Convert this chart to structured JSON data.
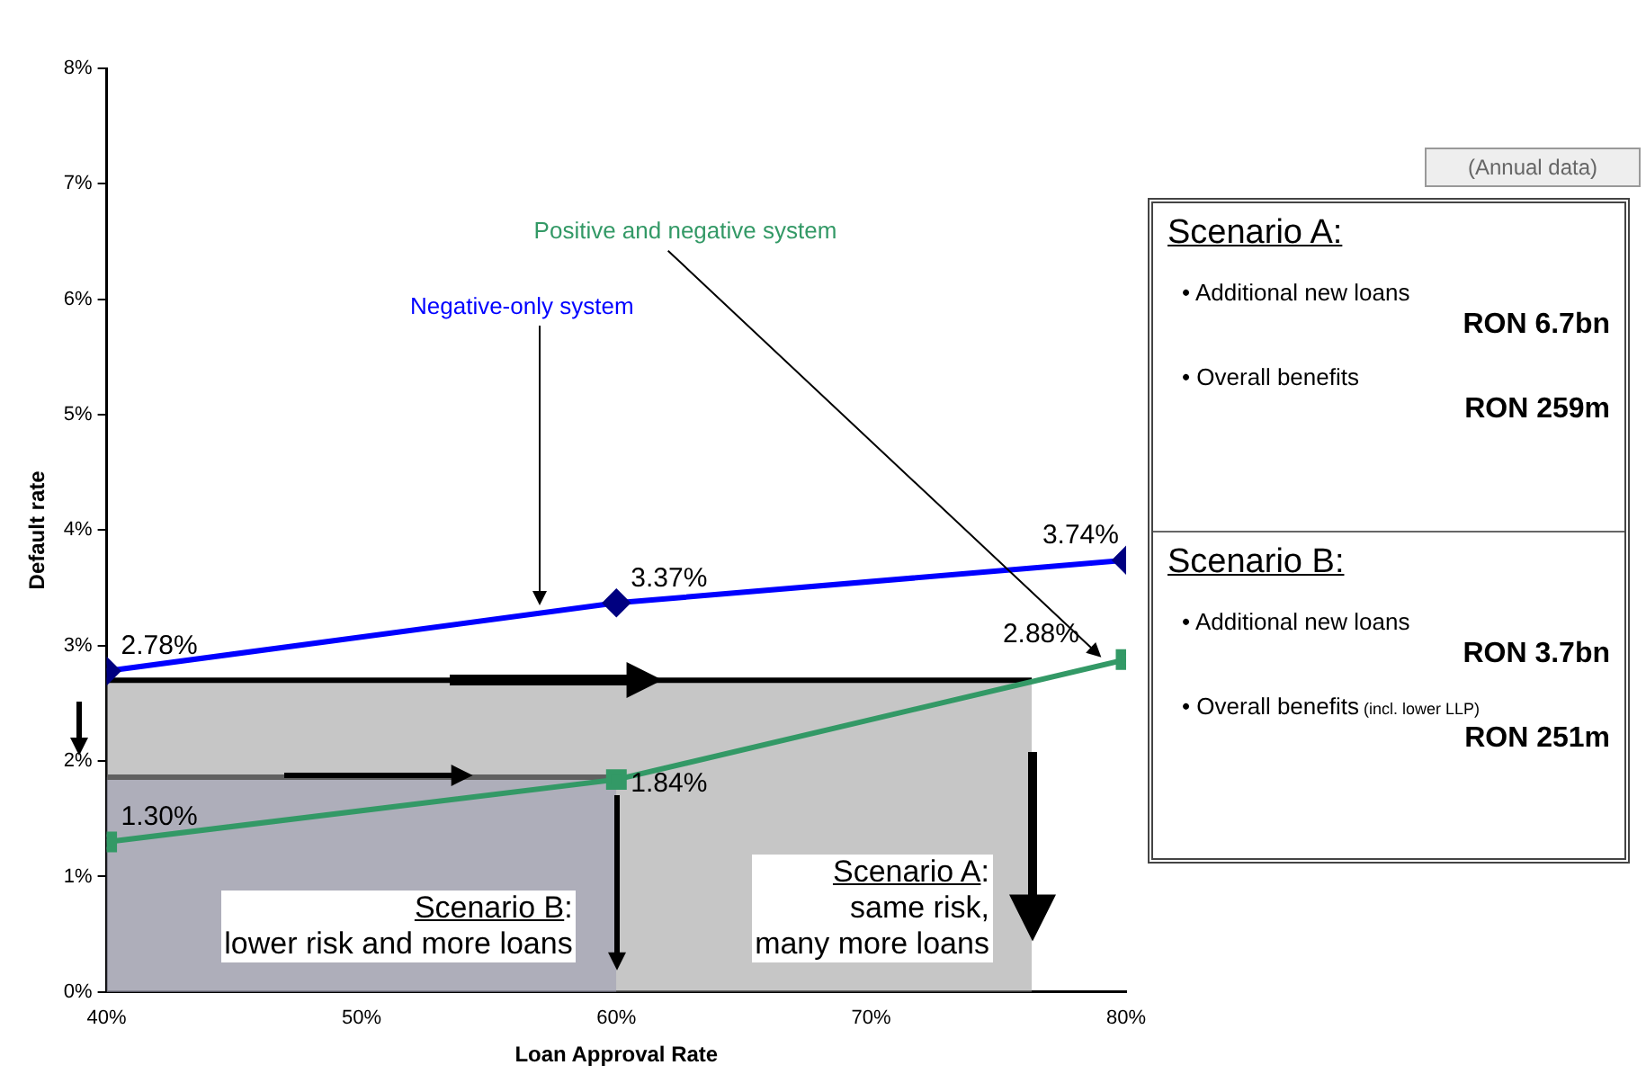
{
  "chart_data": {
    "type": "line",
    "xlabel": "Loan Approval Rate",
    "ylabel": "Default rate",
    "xlim": [
      40,
      80
    ],
    "xticks": [
      {
        "value": 40,
        "label": "40%"
      },
      {
        "value": 50,
        "label": "50%"
      },
      {
        "value": 60,
        "label": "60%"
      },
      {
        "value": 70,
        "label": "70%"
      },
      {
        "value": 80,
        "label": "80%"
      }
    ],
    "ylim": [
      0,
      8
    ],
    "yticks": [
      {
        "value": 0,
        "label": "0%"
      },
      {
        "value": 1,
        "label": "1%"
      },
      {
        "value": 2,
        "label": "2%"
      },
      {
        "value": 3,
        "label": "3%"
      },
      {
        "value": 4,
        "label": "4%"
      },
      {
        "value": 5,
        "label": "5%"
      },
      {
        "value": 6,
        "label": "6%"
      },
      {
        "value": 7,
        "label": "7%"
      },
      {
        "value": 8,
        "label": "8%"
      }
    ],
    "series": [
      {
        "type": "area",
        "color": "#a0a0a0",
        "x": [
          40,
          76.3
        ],
        "values": [
          2.7,
          2.7
        ],
        "marker": "none"
      },
      {
        "type": "area",
        "color": "#9999cc",
        "x": [
          40,
          60
        ],
        "values": [
          1.86,
          1.86
        ],
        "marker": "none"
      },
      {
        "type": "line",
        "name": "Negative-only system",
        "color": "#0000ff",
        "x": [
          40,
          60,
          80
        ],
        "values": [
          2.78,
          3.37,
          3.74
        ],
        "marker": "diamond",
        "value_labels": [
          "2.78%",
          "3.37%",
          "3.74%"
        ]
      },
      {
        "type": "line",
        "name": "Positive and negative system",
        "color": "#339966",
        "x": [
          40,
          60,
          80
        ],
        "values": [
          1.3,
          1.84,
          2.88
        ],
        "marker": "square",
        "value_labels": [
          "1.30%",
          "1.84%",
          "2.88%"
        ]
      }
    ],
    "grid": false,
    "legend": false,
    "annotations": [
      "Scenario B:\nlower risk and more loans",
      "Scenario A:\nsame risk,\nmany more loans",
      "(Annual data)",
      "Scenario A:",
      "• Additional new loans",
      "RON 6.7bn",
      "• Overall benefits",
      "RON 259m",
      "Scenario B:",
      "• Additional new loans",
      "RON 3.7bn",
      "• Overall benefits",
      "(incl. lower LLP)",
      "RON 251m"
    ]
  }
}
